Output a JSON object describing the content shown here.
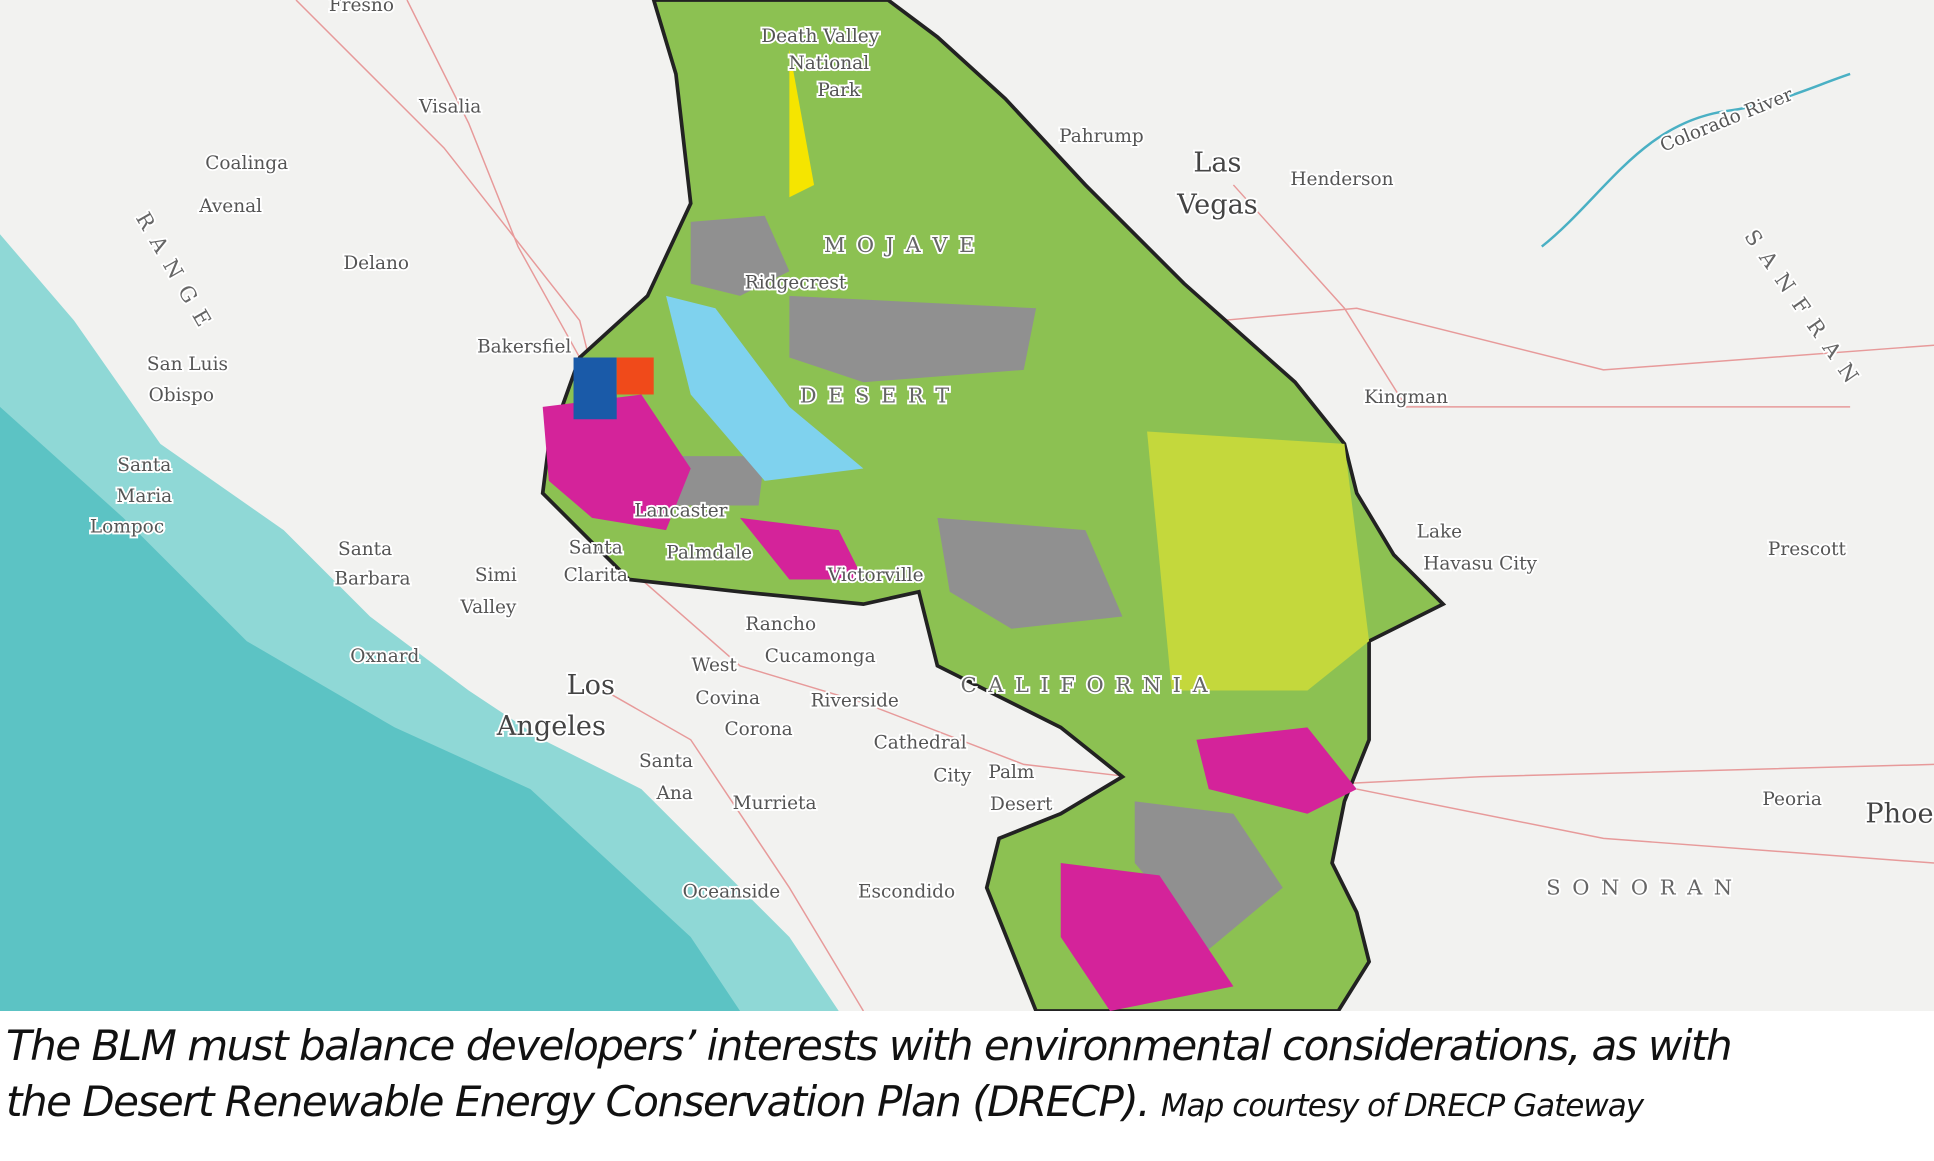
{
  "map": {
    "labels": [
      "Fresno",
      "Visalia",
      "Coalinga",
      "Avenal",
      "Delano",
      "Bakersfiel",
      "San Luis",
      "Obispo",
      "Santa",
      "Maria",
      "Lompoc",
      "Santa",
      "Barbara",
      "Simi",
      "Valley",
      "Oxnard",
      "Los",
      "Angeles",
      "Santa",
      "Ana",
      "Oceanside",
      "Escondido",
      "Murrieta",
      "Corona",
      "Covina",
      "West",
      "Cucamonga",
      "Rancho",
      "Riverside",
      "Cathedral",
      "City",
      "Palm",
      "Desert",
      "Victorville",
      "Lancaster",
      "Palmdale",
      "Santa",
      "Clarita",
      "Ridgecrest",
      "Death Valley",
      "National",
      "Park",
      "Pahrump",
      "Las",
      "Vegas",
      "Henderson",
      "Kingman",
      "Lake",
      "Havasu City",
      "Prescott",
      "Peoria",
      "Phoe",
      "Colorado River",
      "M O J A V E",
      "D E S E R T",
      "C A L I F O R N I A",
      "S O N O R A N",
      "R A N G E",
      "S A N  F R A N"
    ]
  },
  "caption": {
    "line1": "The BLM must balance developers’ interests with environmental considerations, as with",
    "line2": "the Desert Renewable Energy Conservation Plan (DRECP).",
    "credit": "Map courtesy of DRECP Gateway"
  }
}
